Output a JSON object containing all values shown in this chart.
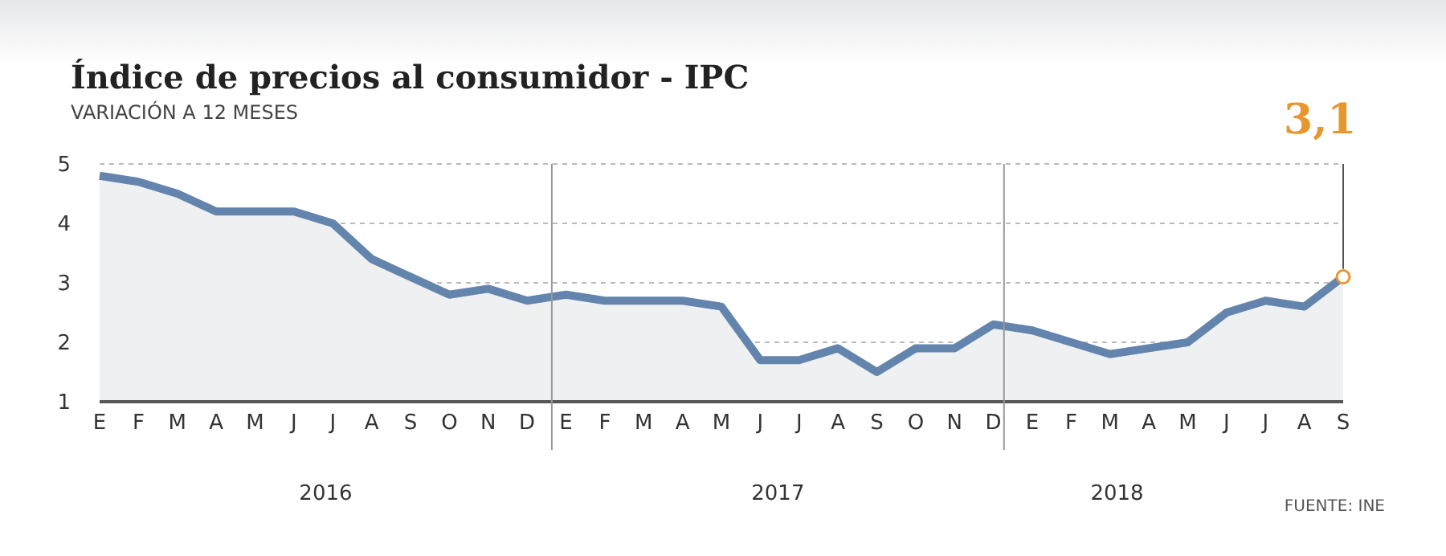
{
  "chart_data": {
    "type": "area",
    "title": "Índice de precios al consumidor - IPC",
    "subtitle": "VARIACIÓN A 12 MESES",
    "categories": [
      "E",
      "F",
      "M",
      "A",
      "M",
      "J",
      "J",
      "A",
      "S",
      "O",
      "N",
      "D",
      "E",
      "F",
      "M",
      "A",
      "M",
      "J",
      "J",
      "A",
      "S",
      "O",
      "N",
      "D",
      "E",
      "F",
      "M",
      "A",
      "M",
      "J",
      "J",
      "A",
      "S"
    ],
    "series": [
      {
        "color": "#6384ad",
        "values": [
          4.8,
          4.7,
          4.5,
          4.2,
          4.2,
          4.2,
          4.0,
          3.4,
          3.1,
          2.8,
          2.9,
          2.7,
          2.8,
          2.7,
          2.7,
          2.7,
          2.6,
          1.7,
          1.7,
          1.9,
          1.5,
          1.9,
          1.9,
          2.3,
          2.2,
          2.0,
          1.8,
          1.9,
          2.0,
          2.5,
          2.7,
          2.6,
          3.1
        ],
        "value_labels": [
          null,
          null,
          null,
          null,
          null,
          null,
          null,
          null,
          null,
          null,
          null,
          null,
          null,
          null,
          null,
          null,
          null,
          null,
          null,
          null,
          null,
          null,
          null,
          null,
          null,
          null,
          null,
          null,
          null,
          null,
          null,
          null,
          "3,1"
        ]
      }
    ],
    "ylim": [
      1,
      5
    ],
    "yticks": [
      1,
      2,
      3,
      4,
      5
    ],
    "grid": "y",
    "annotations": [
      "2016",
      "2017",
      "2018",
      "FUENTE: INE"
    ]
  }
}
